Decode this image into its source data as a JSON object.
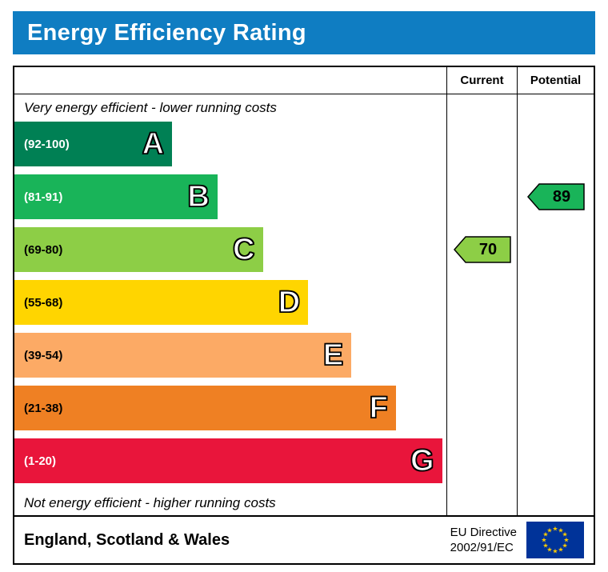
{
  "title": "Energy Efficiency Rating",
  "columns": {
    "current": "Current",
    "potential": "Potential"
  },
  "captions": {
    "top": "Very energy efficient - lower running costs",
    "bottom": "Not energy efficient - higher running costs"
  },
  "bands": [
    {
      "letter": "A",
      "range": "(92-100)",
      "color": "#008054",
      "range_text_color": "#ffffff",
      "width_pct": 36.5
    },
    {
      "letter": "B",
      "range": "(81-91)",
      "color": "#19b459",
      "range_text_color": "#ffffff",
      "width_pct": 47
    },
    {
      "letter": "C",
      "range": "(69-80)",
      "color": "#8dce46",
      "range_text_color": "#000000",
      "width_pct": 57.5
    },
    {
      "letter": "D",
      "range": "(55-68)",
      "color": "#ffd500",
      "range_text_color": "#000000",
      "width_pct": 68
    },
    {
      "letter": "E",
      "range": "(39-54)",
      "color": "#fcaa65",
      "range_text_color": "#000000",
      "width_pct": 78
    },
    {
      "letter": "F",
      "range": "(21-38)",
      "color": "#ef8023",
      "range_text_color": "#000000",
      "width_pct": 88.3
    },
    {
      "letter": "G",
      "range": "(1-20)",
      "color": "#e9153b",
      "range_text_color": "#ffffff",
      "width_pct": 99
    }
  ],
  "ratings": {
    "current": {
      "value": "70",
      "band": "C",
      "color": "#8dce46"
    },
    "potential": {
      "value": "89",
      "band": "B",
      "color": "#19b459"
    }
  },
  "footer": {
    "region": "England, Scotland & Wales",
    "directive_line1": "EU Directive",
    "directive_line2": "2002/91/EC"
  },
  "colors": {
    "header_bg": "#0f7dc2",
    "eu_flag_bg": "#003399",
    "eu_flag_star": "#ffcc00",
    "border": "#000000"
  },
  "chart_data": {
    "type": "bar",
    "orientation": "horizontal",
    "title": "Energy Efficiency Rating",
    "categories": [
      "A",
      "B",
      "C",
      "D",
      "E",
      "F",
      "G"
    ],
    "band_ranges": [
      "92-100",
      "81-91",
      "69-80",
      "55-68",
      "39-54",
      "21-38",
      "1-20"
    ],
    "band_colors": [
      "#008054",
      "#19b459",
      "#8dce46",
      "#ffd500",
      "#fcaa65",
      "#ef8023",
      "#e9153b"
    ],
    "band_relative_widths_pct": [
      36.5,
      47,
      57.5,
      68,
      78,
      88.3,
      99
    ],
    "series": [
      {
        "name": "Current",
        "value": 70,
        "band": "C"
      },
      {
        "name": "Potential",
        "value": 89,
        "band": "B"
      }
    ],
    "annotations": [
      "Very energy efficient - lower running costs",
      "Not energy efficient - higher running costs"
    ],
    "footer": "England, Scotland & Wales — EU Directive 2002/91/EC"
  }
}
